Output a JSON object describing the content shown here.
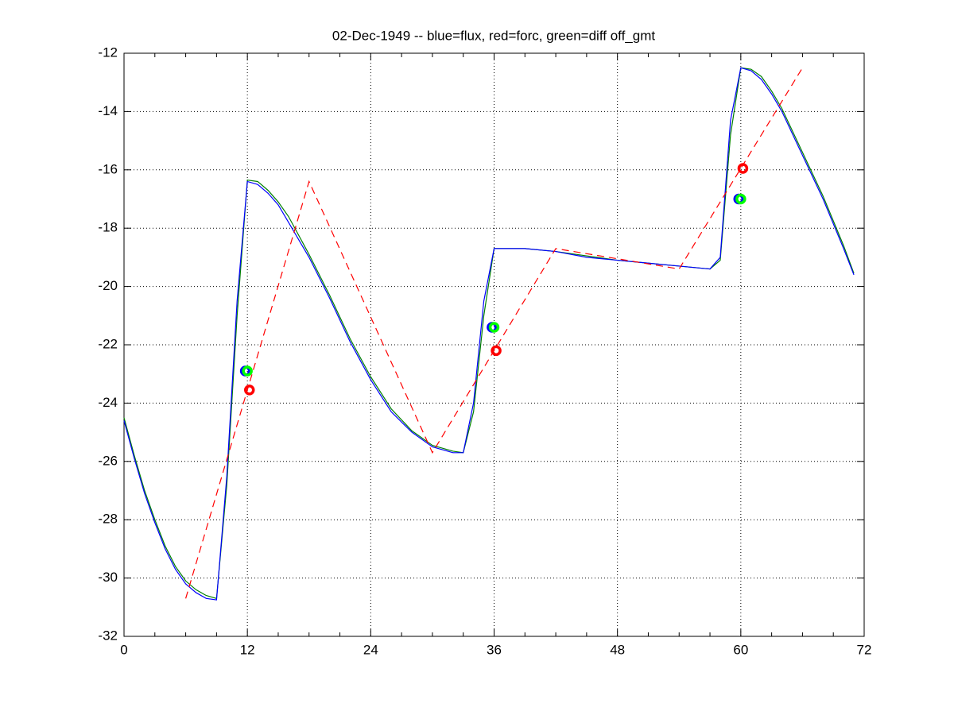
{
  "chart_data": {
    "type": "line",
    "title": "02-Dec-1949 -- blue=flux, red=forc, green=diff off_gmt",
    "xlim": [
      0,
      72
    ],
    "ylim": [
      -32,
      -12
    ],
    "xticks": [
      0,
      12,
      24,
      36,
      48,
      60,
      72
    ],
    "xminorticks": [
      3,
      6,
      9,
      15,
      18,
      21,
      27,
      30,
      33,
      39,
      42,
      45,
      51,
      54,
      57,
      63,
      66,
      69
    ],
    "yticks": [
      -12,
      -14,
      -16,
      -18,
      -20,
      -22,
      -24,
      -26,
      -28,
      -30,
      -32
    ],
    "grid": true,
    "series": [
      {
        "color": "#008000",
        "linestyle": "solid",
        "marker": "none",
        "x": [
          0,
          1,
          2,
          3,
          4,
          5,
          6,
          7,
          8,
          9,
          10,
          11,
          12,
          13,
          14,
          15,
          16,
          18,
          20,
          22,
          24,
          26,
          28,
          30,
          32,
          33,
          34,
          35,
          36,
          39,
          42,
          45,
          48,
          51,
          54,
          57,
          58,
          59,
          60,
          61,
          62,
          63,
          64,
          66,
          68,
          70,
          71
        ],
        "values": [
          -24.5,
          -25.8,
          -27.0,
          -28.0,
          -28.9,
          -29.6,
          -30.1,
          -30.4,
          -30.6,
          -30.7,
          -26.8,
          -21.0,
          -16.35,
          -16.4,
          -16.7,
          -17.1,
          -17.6,
          -18.9,
          -20.3,
          -21.8,
          -23.1,
          -24.2,
          -24.95,
          -25.45,
          -25.65,
          -25.7,
          -24.3,
          -21.0,
          -18.7,
          -18.7,
          -18.8,
          -18.95,
          -19.1,
          -19.2,
          -19.3,
          -19.4,
          -19.1,
          -14.8,
          -12.5,
          -12.55,
          -12.8,
          -13.3,
          -13.9,
          -15.4,
          -16.9,
          -18.6,
          -19.55
        ]
      },
      {
        "color": "#0000ff",
        "linestyle": "solid",
        "marker": "none",
        "x": [
          0,
          1,
          2,
          3,
          4,
          5,
          6,
          7,
          8,
          9,
          10,
          11,
          12,
          13,
          14,
          15,
          16,
          18,
          20,
          22,
          24,
          26,
          28,
          30,
          32,
          33,
          34,
          35,
          36,
          39,
          42,
          45,
          48,
          51,
          54,
          57,
          58,
          59,
          60,
          61,
          62,
          63,
          64,
          66,
          68,
          70,
          71
        ],
        "values": [
          -24.6,
          -25.9,
          -27.1,
          -28.1,
          -29.0,
          -29.7,
          -30.2,
          -30.5,
          -30.7,
          -30.75,
          -26.5,
          -20.5,
          -16.4,
          -16.5,
          -16.8,
          -17.2,
          -17.8,
          -19.0,
          -20.4,
          -21.9,
          -23.2,
          -24.3,
          -25.0,
          -25.5,
          -25.7,
          -25.7,
          -24.0,
          -20.5,
          -18.7,
          -18.7,
          -18.8,
          -19.0,
          -19.1,
          -19.2,
          -19.3,
          -19.4,
          -19.0,
          -14.3,
          -12.5,
          -12.6,
          -12.9,
          -13.4,
          -14.0,
          -15.5,
          -17.0,
          -18.7,
          -19.6
        ]
      },
      {
        "color": "#ff0000",
        "linestyle": "dashed",
        "marker": "none",
        "x": [
          6,
          18,
          30,
          42,
          54,
          66
        ],
        "values": [
          -30.7,
          -16.4,
          -25.7,
          -18.7,
          -19.4,
          -12.5
        ]
      },
      {
        "color": "#0000ff",
        "linestyle": "none",
        "marker": "o",
        "x": [
          11.8,
          35.8,
          59.8
        ],
        "values": [
          -22.9,
          -21.4,
          -17.0
        ]
      },
      {
        "color": "#00ff00",
        "linestyle": "none",
        "marker": "o",
        "x": [
          12,
          36,
          60
        ],
        "values": [
          -22.9,
          -21.4,
          -17.0
        ]
      },
      {
        "color": "#ff0000",
        "linestyle": "none",
        "marker": "o",
        "x": [
          12.2,
          36.2,
          60.2
        ],
        "values": [
          -23.55,
          -22.2,
          -15.95
        ]
      }
    ]
  }
}
